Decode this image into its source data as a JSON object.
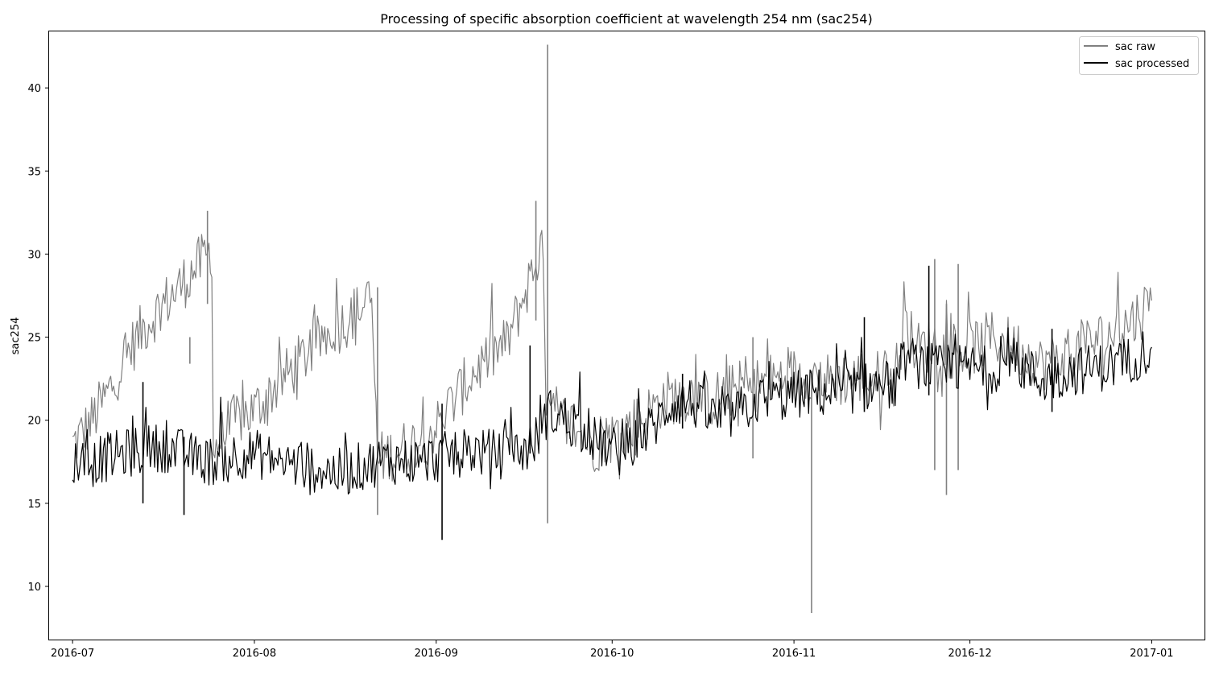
{
  "chart_data": {
    "type": "line",
    "title": "Processing of specific absorption coefficient at wavelength  254 nm (sac254)",
    "xlabel": "",
    "ylabel": "sac254",
    "xlim": [
      "2016-06-27",
      "2017-01-10"
    ],
    "ylim": [
      6.8,
      43.4
    ],
    "x_ticks": [
      "2016-07",
      "2016-08",
      "2016-09",
      "2016-10",
      "2016-11",
      "2016-12",
      "2017-01"
    ],
    "y_ticks": [
      10,
      15,
      20,
      25,
      30,
      35,
      40
    ],
    "grid": false,
    "legend": {
      "placement": "top-right",
      "entries": [
        "sac raw",
        "sac processed"
      ]
    },
    "colors": {
      "sac raw": "#808080",
      "sac processed": "#000000"
    },
    "series": [
      {
        "name": "sac raw",
        "x": [
          "2016-07-01",
          "2016-07-04",
          "2016-07-07",
          "2016-07-10",
          "2016-07-13",
          "2016-07-16",
          "2016-07-19",
          "2016-07-22",
          "2016-07-25",
          "2016-07-25",
          "2016-07-26",
          "2016-07-29",
          "2016-08-01",
          "2016-08-04",
          "2016-08-07",
          "2016-08-10",
          "2016-08-13",
          "2016-08-16",
          "2016-08-19",
          "2016-08-21",
          "2016-08-22",
          "2016-08-25",
          "2016-08-28",
          "2016-09-01",
          "2016-09-04",
          "2016-09-07",
          "2016-09-10",
          "2016-09-13",
          "2016-09-16",
          "2016-09-19",
          "2016-09-20",
          "2016-09-21",
          "2016-09-24",
          "2016-09-28",
          "2016-10-02",
          "2016-10-06",
          "2016-10-10",
          "2016-10-14",
          "2016-10-18",
          "2016-10-22",
          "2016-10-26",
          "2016-10-30",
          "2016-11-03",
          "2016-11-06",
          "2016-11-10",
          "2016-11-14",
          "2016-11-18",
          "2016-11-20",
          "2016-11-22",
          "2016-11-25",
          "2016-11-28",
          "2016-12-01",
          "2016-12-05",
          "2016-12-09",
          "2016-12-13",
          "2016-12-17",
          "2016-12-21",
          "2016-12-25",
          "2016-12-29",
          "2017-01-01"
        ],
        "y": [
          18.5,
          19.8,
          21.6,
          23.8,
          25.5,
          26.8,
          27.9,
          29.2,
          30.3,
          18.0,
          18.8,
          20.1,
          20.6,
          21.8,
          22.9,
          24.0,
          25.1,
          25.8,
          26.7,
          27.2,
          17.6,
          18.1,
          18.6,
          19.6,
          21.2,
          22.7,
          23.8,
          24.6,
          27.5,
          30.5,
          20.6,
          20.1,
          19.8,
          18.5,
          19.2,
          20.1,
          21.3,
          21.6,
          21.2,
          21.9,
          22.2,
          22.6,
          22.9,
          22.4,
          22.5,
          22.7,
          22.4,
          25.6,
          24.3,
          24.6,
          24.1,
          24.3,
          25.0,
          24.4,
          23.4,
          23.8,
          24.6,
          25.1,
          26.1,
          27.2
        ],
        "spikes": [
          {
            "x": "2016-07-21",
            "low": 23.4,
            "high": 25.0
          },
          {
            "x": "2016-07-24",
            "low": 27.0,
            "high": 32.6
          },
          {
            "x": "2016-08-22",
            "low": 14.3,
            "high": 28.0
          },
          {
            "x": "2016-09-18",
            "low": 26.0,
            "high": 33.2
          },
          {
            "x": "2016-09-20",
            "low": 13.8,
            "high": 42.6
          },
          {
            "x": "2016-10-25",
            "low": 17.7,
            "high": 25.0
          },
          {
            "x": "2016-11-04",
            "low": 8.4,
            "high": 23.0
          },
          {
            "x": "2016-11-25",
            "low": 17.0,
            "high": 29.7
          },
          {
            "x": "2016-11-27",
            "low": 15.5,
            "high": 27.0
          },
          {
            "x": "2016-11-29",
            "low": 17.0,
            "high": 29.4
          }
        ]
      },
      {
        "name": "sac processed",
        "x": [
          "2016-07-01",
          "2016-07-04",
          "2016-07-07",
          "2016-07-10",
          "2016-07-13",
          "2016-07-16",
          "2016-07-19",
          "2016-07-22",
          "2016-07-25",
          "2016-07-28",
          "2016-08-01",
          "2016-08-04",
          "2016-08-07",
          "2016-08-10",
          "2016-08-13",
          "2016-08-16",
          "2016-08-19",
          "2016-08-22",
          "2016-08-25",
          "2016-08-28",
          "2016-09-01",
          "2016-09-04",
          "2016-09-07",
          "2016-09-10",
          "2016-09-13",
          "2016-09-16",
          "2016-09-18",
          "2016-09-20",
          "2016-09-23",
          "2016-09-26",
          "2016-09-29",
          "2016-10-02",
          "2016-10-05",
          "2016-10-08",
          "2016-10-11",
          "2016-10-14",
          "2016-10-17",
          "2016-10-20",
          "2016-10-23",
          "2016-10-26",
          "2016-10-29",
          "2016-11-01",
          "2016-11-04",
          "2016-11-07",
          "2016-11-10",
          "2016-11-13",
          "2016-11-16",
          "2016-11-19",
          "2016-11-20",
          "2016-11-22",
          "2016-11-25",
          "2016-11-28",
          "2016-12-01",
          "2016-12-04",
          "2016-12-07",
          "2016-12-10",
          "2016-12-13",
          "2016-12-16",
          "2016-12-19",
          "2016-12-22",
          "2016-12-25",
          "2016-12-28",
          "2017-01-01"
        ],
        "y": [
          17.6,
          17.4,
          17.8,
          18.0,
          18.2,
          18.4,
          18.1,
          17.7,
          17.5,
          17.9,
          18.0,
          17.7,
          17.4,
          17.2,
          17.0,
          16.8,
          17.2,
          17.5,
          17.6,
          17.5,
          17.7,
          18.0,
          18.2,
          18.0,
          17.9,
          18.2,
          18.8,
          20.5,
          20.1,
          19.2,
          18.6,
          18.0,
          18.8,
          19.6,
          21.0,
          21.2,
          20.4,
          20.0,
          20.6,
          21.2,
          21.3,
          21.5,
          21.7,
          21.6,
          21.8,
          22.0,
          22.2,
          22.0,
          23.8,
          23.4,
          23.1,
          23.0,
          23.2,
          23.0,
          23.4,
          23.2,
          22.4,
          22.7,
          23.0,
          23.1,
          23.3,
          23.6,
          24.4
        ],
        "spikes": [
          {
            "x": "2016-07-13",
            "low": 15.0,
            "high": 22.3
          },
          {
            "x": "2016-07-20",
            "low": 14.3,
            "high": 19.0
          },
          {
            "x": "2016-09-02",
            "low": 12.8,
            "high": 21.0
          },
          {
            "x": "2016-09-17",
            "low": 18.0,
            "high": 24.5
          },
          {
            "x": "2016-10-13",
            "low": 19.5,
            "high": 22.8
          },
          {
            "x": "2016-11-13",
            "low": 20.5,
            "high": 26.2
          },
          {
            "x": "2016-11-24",
            "low": 21.5,
            "high": 29.3
          },
          {
            "x": "2016-12-15",
            "low": 20.5,
            "high": 25.5
          }
        ]
      }
    ]
  }
}
